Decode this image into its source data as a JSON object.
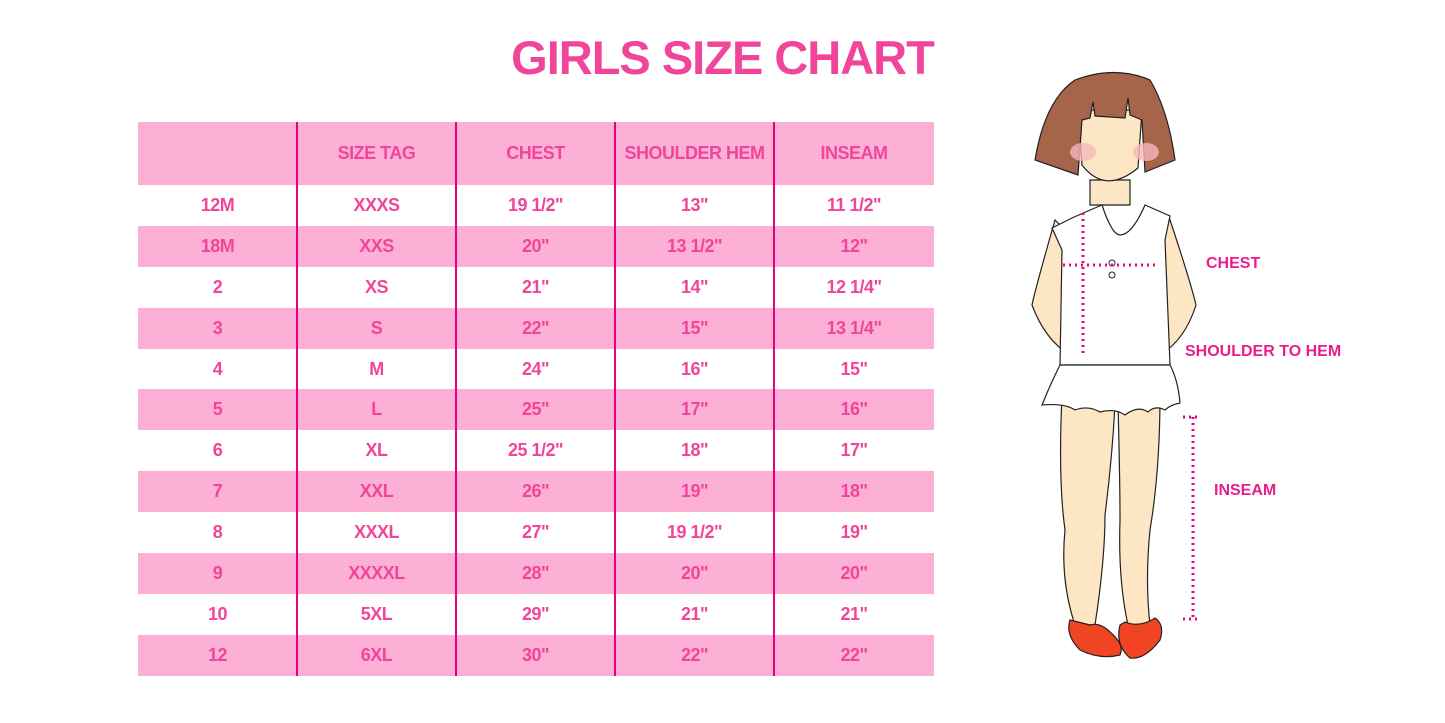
{
  "title": "GIRLS SIZE CHART",
  "table": {
    "headers": [
      "",
      "SIZE TAG",
      "CHEST",
      "SHOULDER HEM",
      "INSEAM"
    ],
    "rows": [
      [
        "12M",
        "XXXS",
        "19 1/2\"",
        "13\"",
        "11 1/2\""
      ],
      [
        "18M",
        "XXS",
        "20\"",
        "13 1/2\"",
        "12\""
      ],
      [
        "2",
        "XS",
        "21\"",
        "14\"",
        "12 1/4\""
      ],
      [
        "3",
        "S",
        "22\"",
        "15\"",
        "13 1/4\""
      ],
      [
        "4",
        "M",
        "24\"",
        "16\"",
        "15\""
      ],
      [
        "5",
        "L",
        "25\"",
        "17\"",
        "16\""
      ],
      [
        "6",
        "XL",
        "25 1/2\"",
        "18\"",
        "17\""
      ],
      [
        "7",
        "XXL",
        "26\"",
        "19\"",
        "18\""
      ],
      [
        "8",
        "XXXL",
        "27\"",
        "19 1/2\"",
        "19\""
      ],
      [
        "9",
        "XXXXL",
        "28\"",
        "20\"",
        "20\""
      ],
      [
        "10",
        "5XL",
        "29\"",
        "21\"",
        "21\""
      ],
      [
        "12",
        "6XL",
        "30\"",
        "22\"",
        "22\""
      ]
    ]
  },
  "figure": {
    "labels": {
      "chest": "CHEST",
      "shoulder_to_hem": "SHOULDER TO HEM",
      "inseam": "INSEAM"
    }
  },
  "colors": {
    "accent": "#f0459a",
    "row_pink": "#fdb0d6",
    "divider": "#e8007f"
  }
}
